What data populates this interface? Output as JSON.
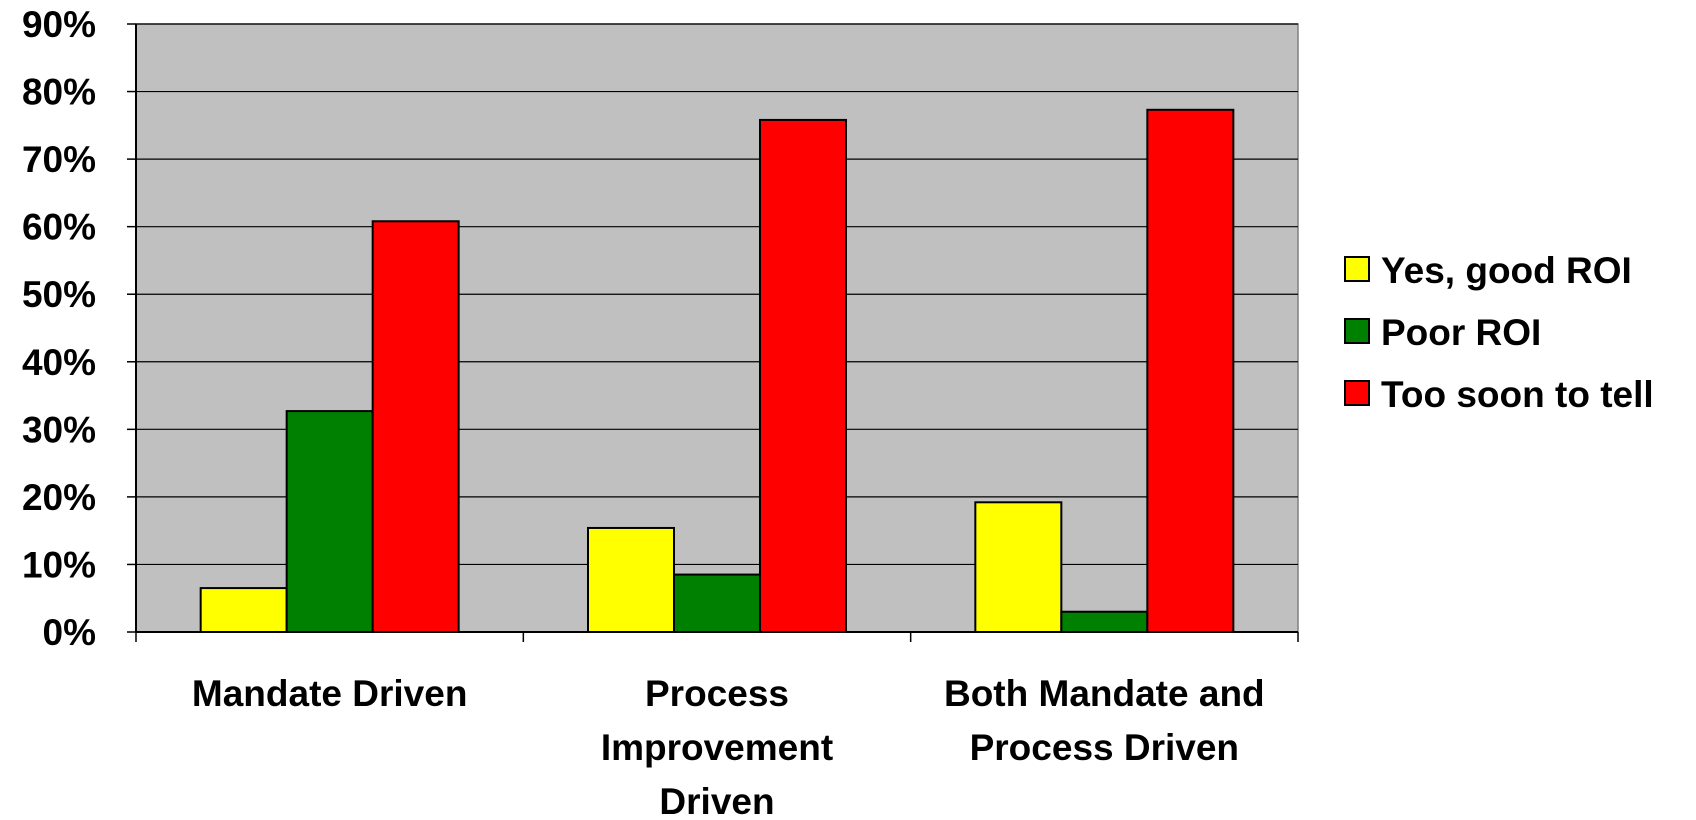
{
  "chart_data": {
    "type": "bar",
    "categories": [
      [
        "Mandate Driven"
      ],
      [
        "Process",
        "Improvement",
        "Driven"
      ],
      [
        "Both Mandate and",
        "Process Driven"
      ]
    ],
    "series": [
      {
        "name": "Yes, good ROI",
        "color": "#FFFF00",
        "values": [
          6.5,
          15.4,
          19.2
        ]
      },
      {
        "name": "Poor ROI",
        "color": "#008000",
        "values": [
          32.7,
          8.5,
          3.0
        ]
      },
      {
        "name": "Too soon to tell",
        "color": "#FF0000",
        "values": [
          60.8,
          75.8,
          77.3
        ]
      }
    ],
    "yticks": [
      "0%",
      "10%",
      "20%",
      "30%",
      "40%",
      "50%",
      "60%",
      "70%",
      "80%",
      "90%"
    ],
    "ylim": [
      0,
      90
    ],
    "plot_background": "#C0C0C0",
    "grid": true,
    "legend_position": "right"
  }
}
